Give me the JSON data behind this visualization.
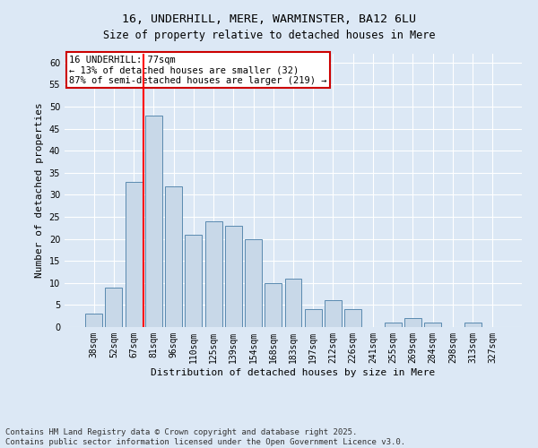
{
  "title": "16, UNDERHILL, MERE, WARMINSTER, BA12 6LU",
  "subtitle": "Size of property relative to detached houses in Mere",
  "xlabel": "Distribution of detached houses by size in Mere",
  "ylabel": "Number of detached properties",
  "categories": [
    "38sqm",
    "52sqm",
    "67sqm",
    "81sqm",
    "96sqm",
    "110sqm",
    "125sqm",
    "139sqm",
    "154sqm",
    "168sqm",
    "183sqm",
    "197sqm",
    "212sqm",
    "226sqm",
    "241sqm",
    "255sqm",
    "269sqm",
    "284sqm",
    "298sqm",
    "313sqm",
    "327sqm"
  ],
  "values": [
    3,
    9,
    33,
    48,
    32,
    21,
    24,
    23,
    20,
    10,
    11,
    4,
    6,
    4,
    0,
    1,
    2,
    1,
    0,
    1,
    0
  ],
  "bar_color": "#c8d8e8",
  "bar_edge_color": "#5a8ab0",
  "red_line_index": 3,
  "annotation_text": "16 UNDERHILL: 77sqm\n← 13% of detached houses are smaller (32)\n87% of semi-detached houses are larger (219) →",
  "annotation_box_color": "#ffffff",
  "annotation_box_edge_color": "#cc0000",
  "ylim": [
    0,
    62
  ],
  "yticks": [
    0,
    5,
    10,
    15,
    20,
    25,
    30,
    35,
    40,
    45,
    50,
    55,
    60
  ],
  "background_color": "#dce8f5",
  "footer_text": "Contains HM Land Registry data © Crown copyright and database right 2025.\nContains public sector information licensed under the Open Government Licence v3.0.",
  "title_fontsize": 9.5,
  "subtitle_fontsize": 8.5,
  "xlabel_fontsize": 8,
  "ylabel_fontsize": 8,
  "tick_fontsize": 7,
  "annotation_fontsize": 7.5,
  "footer_fontsize": 6.5
}
